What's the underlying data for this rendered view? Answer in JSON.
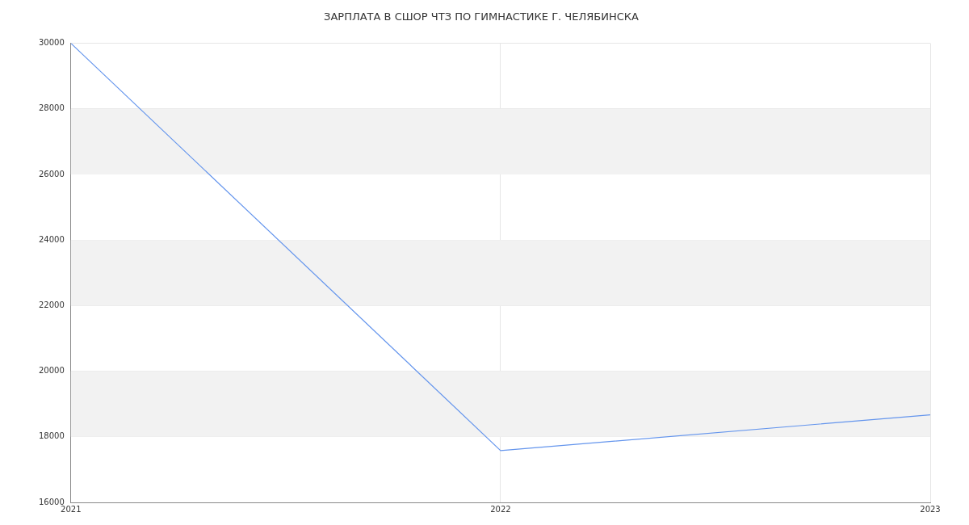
{
  "chart_data": {
    "type": "line",
    "title": "ЗАРПЛАТА В СШОР ЧТЗ ПО ГИМНАСТИКЕ Г. ЧЕЛЯБИНСКА",
    "x": [
      2021,
      2022,
      2023
    ],
    "series": [
      {
        "color": "#6495ed",
        "values": [
          30000,
          17580,
          18670
        ]
      }
    ],
    "xlim": [
      2021,
      2023
    ],
    "xticks": [
      2021,
      2022,
      2023
    ],
    "ylim": [
      16000,
      30000
    ],
    "yticks": [
      16000,
      18000,
      20000,
      22000,
      24000,
      26000,
      28000,
      30000
    ],
    "bands": [
      {
        "axis": "y",
        "from": 18000,
        "to": 20000,
        "color": "#f2f2f2"
      },
      {
        "axis": "y",
        "from": 22000,
        "to": 24000,
        "color": "#f2f2f2"
      },
      {
        "axis": "y",
        "from": 26000,
        "to": 28000,
        "color": "#f2f2f2"
      }
    ],
    "grid": true,
    "legend": false,
    "marker": "none",
    "line_style": "solid"
  }
}
